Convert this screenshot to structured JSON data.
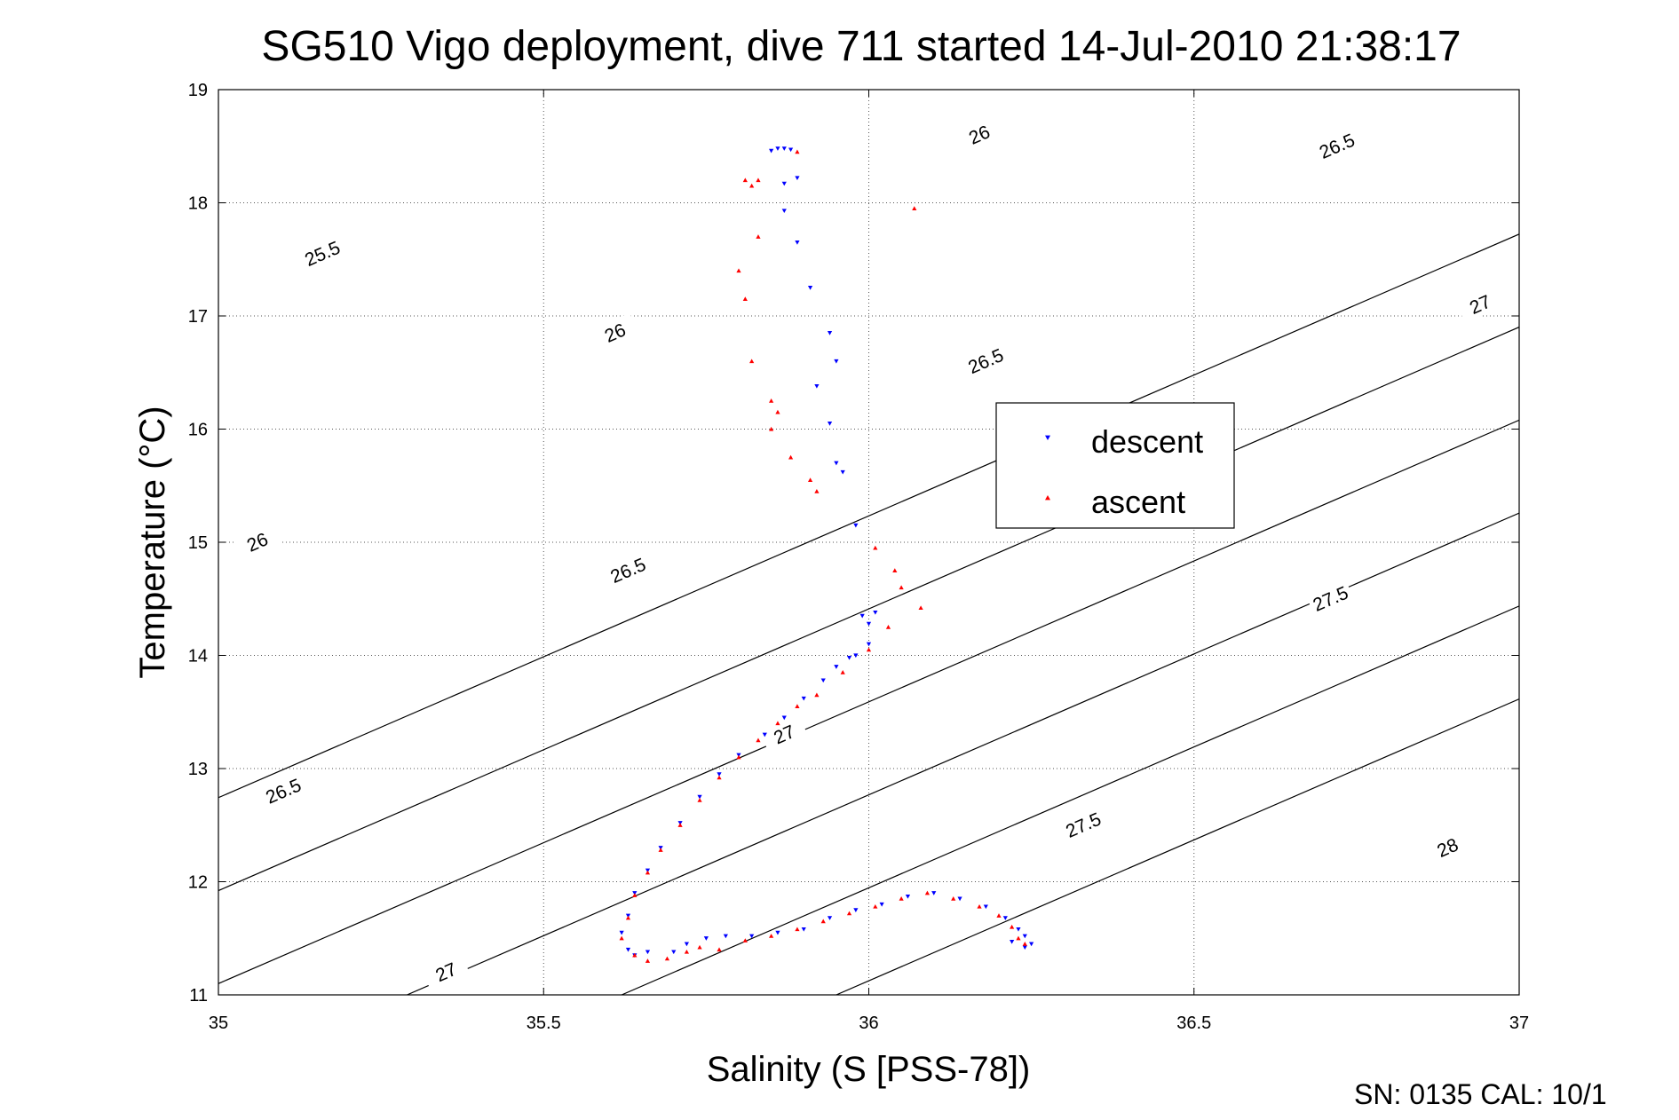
{
  "chart_data": {
    "type": "scatter",
    "title": "SG510 Vigo deployment, dive 711 started 14-Jul-2010 21:38:17",
    "xlabel": "Salinity (S [PSS-78])",
    "ylabel": "Temperature (°C)",
    "xlim": [
      35,
      37
    ],
    "ylim": [
      11,
      19
    ],
    "xticks": [
      "35",
      "35.5",
      "36",
      "36.5",
      "37"
    ],
    "yticks": [
      "11",
      "12",
      "13",
      "14",
      "15",
      "16",
      "17",
      "18",
      "19"
    ],
    "grid": true,
    "legend_position": "center-right",
    "footer": "SN: 0135  CAL: 10/1",
    "density_contours": [
      {
        "label": "25.5",
        "s_at_t11": 34.3
      },
      {
        "label": "26",
        "s_at_t11": 34.63
      },
      {
        "label": "26.5",
        "s_at_t11": 34.96
      },
      {
        "label": "27",
        "s_at_t11": 35.29
      },
      {
        "label": "27.5",
        "s_at_t11": 35.62
      },
      {
        "label": "28",
        "s_at_t11": 35.95
      }
    ],
    "contour_labels": [
      {
        "text": "25.5",
        "s": 35.16,
        "t": 17.55
      },
      {
        "text": "26",
        "s": 36.17,
        "t": 18.6
      },
      {
        "text": "26.5",
        "s": 36.72,
        "t": 18.5
      },
      {
        "text": "26",
        "s": 35.61,
        "t": 16.85
      },
      {
        "text": "26.5",
        "s": 36.18,
        "t": 16.6
      },
      {
        "text": "27",
        "s": 36.94,
        "t": 17.1
      },
      {
        "text": "26",
        "s": 35.06,
        "t": 15.0
      },
      {
        "text": "26.5",
        "s": 35.63,
        "t": 14.75
      },
      {
        "text": "27.5",
        "s": 36.71,
        "t": 14.5
      },
      {
        "text": "27",
        "s": 35.87,
        "t": 13.3
      },
      {
        "text": "26.5",
        "s": 35.1,
        "t": 12.8
      },
      {
        "text": "27.5",
        "s": 36.33,
        "t": 12.5
      },
      {
        "text": "28",
        "s": 36.89,
        "t": 12.3
      },
      {
        "text": "27",
        "s": 35.35,
        "t": 11.2
      }
    ],
    "series": [
      {
        "name": "descent",
        "color": "#0000ff",
        "marker": "triangle-down",
        "points": [
          [
            35.86,
            18.48
          ],
          [
            35.87,
            18.48
          ],
          [
            35.88,
            18.47
          ],
          [
            35.85,
            18.46
          ],
          [
            35.87,
            18.17
          ],
          [
            35.89,
            18.22
          ],
          [
            35.87,
            17.93
          ],
          [
            35.89,
            17.65
          ],
          [
            35.91,
            17.25
          ],
          [
            35.94,
            16.85
          ],
          [
            35.95,
            16.6
          ],
          [
            35.92,
            16.38
          ],
          [
            35.94,
            16.05
          ],
          [
            35.95,
            15.7
          ],
          [
            35.96,
            15.62
          ],
          [
            35.98,
            15.15
          ],
          [
            35.99,
            14.35
          ],
          [
            36.0,
            14.28
          ],
          [
            36.01,
            14.38
          ],
          [
            36.0,
            14.1
          ],
          [
            35.98,
            14.0
          ],
          [
            35.97,
            13.98
          ],
          [
            35.95,
            13.9
          ],
          [
            35.93,
            13.78
          ],
          [
            35.9,
            13.62
          ],
          [
            35.87,
            13.45
          ],
          [
            35.84,
            13.3
          ],
          [
            35.8,
            13.12
          ],
          [
            35.77,
            12.95
          ],
          [
            35.74,
            12.75
          ],
          [
            35.71,
            12.52
          ],
          [
            35.68,
            12.3
          ],
          [
            35.66,
            12.1
          ],
          [
            35.64,
            11.9
          ],
          [
            35.63,
            11.7
          ],
          [
            35.62,
            11.55
          ],
          [
            35.63,
            11.4
          ],
          [
            35.64,
            11.35
          ],
          [
            35.66,
            11.38
          ],
          [
            35.7,
            11.38
          ],
          [
            35.72,
            11.45
          ],
          [
            35.75,
            11.5
          ],
          [
            35.78,
            11.52
          ],
          [
            35.82,
            11.52
          ],
          [
            35.86,
            11.55
          ],
          [
            35.9,
            11.58
          ],
          [
            35.94,
            11.68
          ],
          [
            35.98,
            11.75
          ],
          [
            36.02,
            11.8
          ],
          [
            36.06,
            11.87
          ],
          [
            36.1,
            11.9
          ],
          [
            36.14,
            11.85
          ],
          [
            36.18,
            11.78
          ],
          [
            36.21,
            11.68
          ],
          [
            36.23,
            11.58
          ],
          [
            36.24,
            11.52
          ],
          [
            36.25,
            11.45
          ],
          [
            36.24,
            11.42
          ],
          [
            36.22,
            11.47
          ]
        ]
      },
      {
        "name": "ascent",
        "color": "#ff0000",
        "marker": "triangle-up",
        "points": [
          [
            35.89,
            18.45
          ],
          [
            35.83,
            18.2
          ],
          [
            35.81,
            18.2
          ],
          [
            35.82,
            18.15
          ],
          [
            35.83,
            17.7
          ],
          [
            35.8,
            17.4
          ],
          [
            35.81,
            17.15
          ],
          [
            35.82,
            16.6
          ],
          [
            35.85,
            16.25
          ],
          [
            35.86,
            16.15
          ],
          [
            35.85,
            16.0
          ],
          [
            35.88,
            15.75
          ],
          [
            35.91,
            15.55
          ],
          [
            35.92,
            15.45
          ],
          [
            36.07,
            17.95
          ],
          [
            36.01,
            14.95
          ],
          [
            36.04,
            14.75
          ],
          [
            36.05,
            14.6
          ],
          [
            36.08,
            14.42
          ],
          [
            36.03,
            14.25
          ],
          [
            36.0,
            14.05
          ],
          [
            35.96,
            13.85
          ],
          [
            35.92,
            13.65
          ],
          [
            35.89,
            13.55
          ],
          [
            35.86,
            13.4
          ],
          [
            35.83,
            13.25
          ],
          [
            35.8,
            13.1
          ],
          [
            35.77,
            12.92
          ],
          [
            35.74,
            12.72
          ],
          [
            35.71,
            12.5
          ],
          [
            35.68,
            12.28
          ],
          [
            35.66,
            12.08
          ],
          [
            35.64,
            11.88
          ],
          [
            35.63,
            11.68
          ],
          [
            35.62,
            11.5
          ],
          [
            35.64,
            11.35
          ],
          [
            35.66,
            11.3
          ],
          [
            35.69,
            11.32
          ],
          [
            35.72,
            11.38
          ],
          [
            35.74,
            11.42
          ],
          [
            35.77,
            11.4
          ],
          [
            35.81,
            11.48
          ],
          [
            35.85,
            11.52
          ],
          [
            35.89,
            11.58
          ],
          [
            35.93,
            11.65
          ],
          [
            35.97,
            11.72
          ],
          [
            36.01,
            11.78
          ],
          [
            36.05,
            11.85
          ],
          [
            36.09,
            11.9
          ],
          [
            36.13,
            11.85
          ],
          [
            36.17,
            11.78
          ],
          [
            36.2,
            11.7
          ],
          [
            36.22,
            11.6
          ],
          [
            36.23,
            11.5
          ],
          [
            36.24,
            11.45
          ]
        ]
      }
    ]
  }
}
